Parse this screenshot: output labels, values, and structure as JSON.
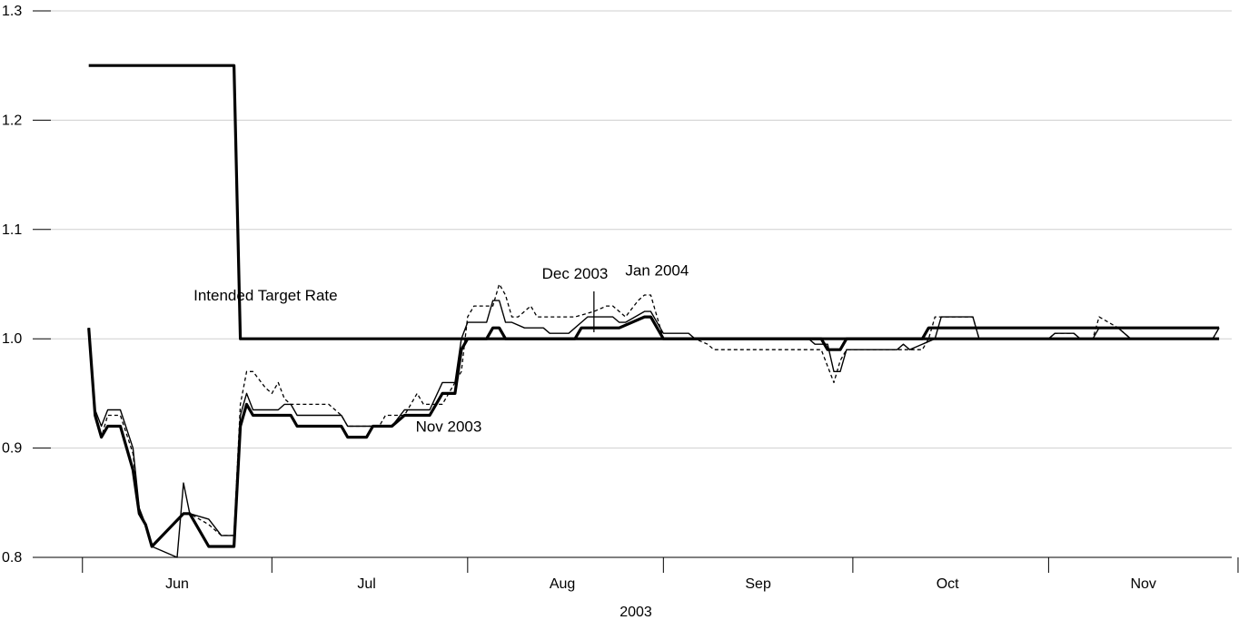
{
  "chart_data": {
    "type": "line",
    "title": "",
    "xlabel": "2003",
    "ylabel": "",
    "ylim": [
      0.8,
      1.3
    ],
    "xlim": [
      "2003-05-27",
      "2003-11-30"
    ],
    "grid": "horizontal",
    "yticks": [
      {
        "value": 0.8,
        "label": "0.8"
      },
      {
        "value": 0.9,
        "label": "0.9"
      },
      {
        "value": 1.0,
        "label": "1.0"
      },
      {
        "value": 1.1,
        "label": "1.1"
      },
      {
        "value": 1.2,
        "label": "1.2"
      },
      {
        "value": 1.3,
        "label": "1.3"
      }
    ],
    "month_boundaries": [
      "2003-06-01",
      "2003-07-01",
      "2003-08-01",
      "2003-09-01",
      "2003-10-01",
      "2003-11-01",
      "2003-12-01"
    ],
    "xticks": [
      {
        "date": "2003-06-16",
        "label": "Jun"
      },
      {
        "date": "2003-07-16",
        "label": "Jul"
      },
      {
        "date": "2003-08-16",
        "label": "Aug"
      },
      {
        "date": "2003-09-16",
        "label": "Sep"
      },
      {
        "date": "2003-10-16",
        "label": "Oct"
      },
      {
        "date": "2003-11-16",
        "label": "Nov"
      }
    ],
    "series": [
      {
        "name": "Intended Target Rate",
        "style": "thick-solid",
        "points": [
          [
            "2003-06-02",
            1.25
          ],
          [
            "2003-06-25",
            1.25
          ],
          [
            "2003-06-26",
            1.0
          ],
          [
            "2003-11-28",
            1.0
          ]
        ]
      },
      {
        "name": "Nov 2003",
        "style": "thick-solid",
        "points": [
          [
            "2003-06-02",
            1.01
          ],
          [
            "2003-06-03",
            0.93
          ],
          [
            "2003-06-04",
            0.91
          ],
          [
            "2003-06-05",
            0.92
          ],
          [
            "2003-06-07",
            0.92
          ],
          [
            "2003-06-09",
            0.88
          ],
          [
            "2003-06-10",
            0.84
          ],
          [
            "2003-06-11",
            0.83
          ],
          [
            "2003-06-12",
            0.81
          ],
          [
            "2003-06-17",
            0.84
          ],
          [
            "2003-06-18",
            0.84
          ],
          [
            "2003-06-21",
            0.81
          ],
          [
            "2003-06-25",
            0.81
          ],
          [
            "2003-06-26",
            0.92
          ],
          [
            "2003-06-27",
            0.94
          ],
          [
            "2003-06-28",
            0.93
          ],
          [
            "2003-07-04",
            0.93
          ],
          [
            "2003-07-05",
            0.92
          ],
          [
            "2003-07-12",
            0.92
          ],
          [
            "2003-07-13",
            0.91
          ],
          [
            "2003-07-16",
            0.91
          ],
          [
            "2003-07-17",
            0.92
          ],
          [
            "2003-07-20",
            0.92
          ],
          [
            "2003-07-22",
            0.93
          ],
          [
            "2003-07-26",
            0.93
          ],
          [
            "2003-07-28",
            0.95
          ],
          [
            "2003-07-30",
            0.95
          ],
          [
            "2003-07-31",
            0.99
          ],
          [
            "2003-08-01",
            1.0
          ],
          [
            "2003-08-04",
            1.0
          ],
          [
            "2003-08-05",
            1.01
          ],
          [
            "2003-08-06",
            1.01
          ],
          [
            "2003-08-07",
            1.0
          ],
          [
            "2003-08-18",
            1.0
          ],
          [
            "2003-08-19",
            1.01
          ],
          [
            "2003-08-25",
            1.01
          ],
          [
            "2003-08-29",
            1.02
          ],
          [
            "2003-08-30",
            1.02
          ],
          [
            "2003-09-01",
            1.0
          ],
          [
            "2003-09-26",
            1.0
          ],
          [
            "2003-09-27",
            0.99
          ],
          [
            "2003-09-29",
            0.99
          ],
          [
            "2003-09-30",
            1.0
          ],
          [
            "2003-10-12",
            1.0
          ],
          [
            "2003-10-13",
            1.01
          ],
          [
            "2003-11-28",
            1.01
          ]
        ]
      },
      {
        "name": "Dec 2003",
        "style": "thin-solid",
        "points": [
          [
            "2003-06-02",
            1.01
          ],
          [
            "2003-06-03",
            0.935
          ],
          [
            "2003-06-04",
            0.92
          ],
          [
            "2003-06-05",
            0.935
          ],
          [
            "2003-06-07",
            0.935
          ],
          [
            "2003-06-09",
            0.9
          ],
          [
            "2003-06-10",
            0.845
          ],
          [
            "2003-06-11",
            0.83
          ],
          [
            "2003-06-12",
            0.81
          ],
          [
            "2003-06-16",
            0.8
          ],
          [
            "2003-06-17",
            0.868
          ],
          [
            "2003-06-18",
            0.84
          ],
          [
            "2003-06-21",
            0.835
          ],
          [
            "2003-06-23",
            0.82
          ],
          [
            "2003-06-25",
            0.82
          ],
          [
            "2003-06-26",
            0.93
          ],
          [
            "2003-06-27",
            0.95
          ],
          [
            "2003-06-28",
            0.935
          ],
          [
            "2003-07-02",
            0.935
          ],
          [
            "2003-07-03",
            0.94
          ],
          [
            "2003-07-04",
            0.94
          ],
          [
            "2003-07-05",
            0.93
          ],
          [
            "2003-07-12",
            0.93
          ],
          [
            "2003-07-13",
            0.92
          ],
          [
            "2003-07-20",
            0.92
          ],
          [
            "2003-07-22",
            0.935
          ],
          [
            "2003-07-26",
            0.935
          ],
          [
            "2003-07-28",
            0.96
          ],
          [
            "2003-07-30",
            0.96
          ],
          [
            "2003-07-31",
            1.0
          ],
          [
            "2003-08-01",
            1.015
          ],
          [
            "2003-08-04",
            1.015
          ],
          [
            "2003-08-05",
            1.035
          ],
          [
            "2003-08-06",
            1.035
          ],
          [
            "2003-08-07",
            1.015
          ],
          [
            "2003-08-08",
            1.015
          ],
          [
            "2003-08-10",
            1.01
          ],
          [
            "2003-08-13",
            1.01
          ],
          [
            "2003-08-14",
            1.005
          ],
          [
            "2003-08-17",
            1.005
          ],
          [
            "2003-08-19",
            1.015
          ],
          [
            "2003-08-20",
            1.02
          ],
          [
            "2003-08-24",
            1.02
          ],
          [
            "2003-08-25",
            1.015
          ],
          [
            "2003-08-26",
            1.015
          ],
          [
            "2003-08-29",
            1.025
          ],
          [
            "2003-08-30",
            1.025
          ],
          [
            "2003-09-01",
            1.005
          ],
          [
            "2003-09-05",
            1.005
          ],
          [
            "2003-09-06",
            1.0
          ],
          [
            "2003-09-24",
            1.0
          ],
          [
            "2003-09-25",
            0.995
          ],
          [
            "2003-09-27",
            0.995
          ],
          [
            "2003-09-28",
            0.97
          ],
          [
            "2003-09-29",
            0.97
          ],
          [
            "2003-09-30",
            0.99
          ],
          [
            "2003-10-08",
            0.99
          ],
          [
            "2003-10-09",
            0.995
          ],
          [
            "2003-10-10",
            0.99
          ],
          [
            "2003-10-14",
            1.0
          ],
          [
            "2003-10-15",
            1.02
          ],
          [
            "2003-10-20",
            1.02
          ],
          [
            "2003-10-21",
            1.0
          ],
          [
            "2003-11-01",
            1.0
          ],
          [
            "2003-11-02",
            1.005
          ],
          [
            "2003-11-05",
            1.005
          ],
          [
            "2003-11-06",
            1.0
          ],
          [
            "2003-11-08",
            1.0
          ],
          [
            "2003-11-09",
            1.01
          ],
          [
            "2003-11-12",
            1.01
          ],
          [
            "2003-11-14",
            1.0
          ],
          [
            "2003-11-27",
            1.0
          ],
          [
            "2003-11-28",
            1.01
          ]
        ]
      },
      {
        "name": "Jan 2004",
        "style": "thin-dashed",
        "points": [
          [
            "2003-06-02",
            1.01
          ],
          [
            "2003-06-03",
            0.93
          ],
          [
            "2003-06-04",
            0.91
          ],
          [
            "2003-06-05",
            0.93
          ],
          [
            "2003-06-07",
            0.93
          ],
          [
            "2003-06-09",
            0.895
          ],
          [
            "2003-06-10",
            0.84
          ],
          [
            "2003-06-11",
            0.83
          ],
          [
            "2003-06-12",
            0.81
          ],
          [
            "2003-06-17",
            0.84
          ],
          [
            "2003-06-18",
            0.84
          ],
          [
            "2003-06-21",
            0.83
          ],
          [
            "2003-06-23",
            0.82
          ],
          [
            "2003-06-25",
            0.82
          ],
          [
            "2003-06-26",
            0.94
          ],
          [
            "2003-06-27",
            0.97
          ],
          [
            "2003-06-28",
            0.97
          ],
          [
            "2003-06-30",
            0.955
          ],
          [
            "2003-07-01",
            0.95
          ],
          [
            "2003-07-02",
            0.96
          ],
          [
            "2003-07-03",
            0.945
          ],
          [
            "2003-07-04",
            0.94
          ],
          [
            "2003-07-10",
            0.94
          ],
          [
            "2003-07-12",
            0.93
          ],
          [
            "2003-07-13",
            0.92
          ],
          [
            "2003-07-18",
            0.92
          ],
          [
            "2003-07-19",
            0.93
          ],
          [
            "2003-07-22",
            0.93
          ],
          [
            "2003-07-24",
            0.95
          ],
          [
            "2003-07-25",
            0.94
          ],
          [
            "2003-07-28",
            0.94
          ],
          [
            "2003-07-31",
            0.97
          ],
          [
            "2003-08-01",
            1.02
          ],
          [
            "2003-08-02",
            1.03
          ],
          [
            "2003-08-05",
            1.03
          ],
          [
            "2003-08-06",
            1.05
          ],
          [
            "2003-08-07",
            1.04
          ],
          [
            "2003-08-08",
            1.02
          ],
          [
            "2003-08-09",
            1.02
          ],
          [
            "2003-08-11",
            1.03
          ],
          [
            "2003-08-12",
            1.02
          ],
          [
            "2003-08-18",
            1.02
          ],
          [
            "2003-08-21",
            1.025
          ],
          [
            "2003-08-23",
            1.03
          ],
          [
            "2003-08-24",
            1.03
          ],
          [
            "2003-08-25",
            1.025
          ],
          [
            "2003-08-26",
            1.02
          ],
          [
            "2003-08-28",
            1.035
          ],
          [
            "2003-08-29",
            1.04
          ],
          [
            "2003-08-30",
            1.04
          ],
          [
            "2003-09-01",
            1.0
          ],
          [
            "2003-09-05",
            1.0
          ],
          [
            "2003-09-06",
            1.0
          ],
          [
            "2003-09-08",
            0.995
          ],
          [
            "2003-09-09",
            0.99
          ],
          [
            "2003-09-26",
            0.99
          ],
          [
            "2003-09-28",
            0.96
          ],
          [
            "2003-09-29",
            0.98
          ],
          [
            "2003-09-30",
            0.99
          ],
          [
            "2003-10-12",
            0.99
          ],
          [
            "2003-10-13",
            1.0
          ],
          [
            "2003-10-14",
            1.02
          ],
          [
            "2003-10-20",
            1.02
          ],
          [
            "2003-10-21",
            1.0
          ],
          [
            "2003-11-01",
            1.0
          ],
          [
            "2003-11-02",
            1.005
          ],
          [
            "2003-11-05",
            1.005
          ],
          [
            "2003-11-06",
            1.0
          ],
          [
            "2003-11-08",
            1.0
          ],
          [
            "2003-11-09",
            1.02
          ],
          [
            "2003-11-12",
            1.01
          ],
          [
            "2003-11-14",
            1.0
          ],
          [
            "2003-11-27",
            1.0
          ],
          [
            "2003-11-28",
            1.01
          ]
        ]
      }
    ],
    "annotations": [
      {
        "text": "Intended Target Rate",
        "date": "2003-06-30",
        "value": 1.035
      },
      {
        "text": "Dec 2003",
        "date": "2003-08-18",
        "value": 1.055
      },
      {
        "text": "Jan 2004",
        "date": "2003-08-31",
        "value": 1.058
      },
      {
        "text": "Nov 2003",
        "date": "2003-07-29",
        "value": 0.915
      }
    ]
  }
}
